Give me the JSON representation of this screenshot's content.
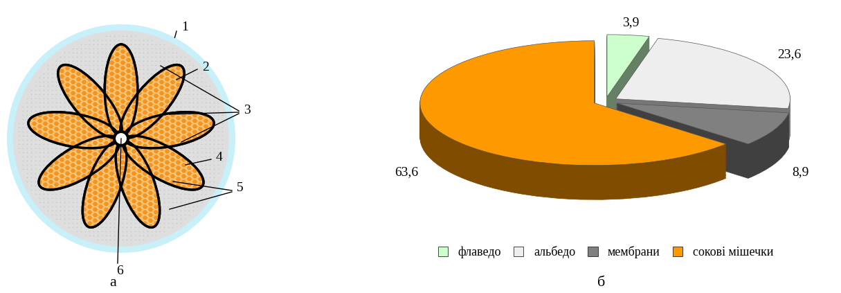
{
  "diagram": {
    "labels": [
      "1",
      "2",
      "3",
      "4",
      "5",
      "6"
    ],
    "caption": "а"
  },
  "chart_data": {
    "type": "pie",
    "categories": [
      "флаведо",
      "альбедо",
      "мембрани",
      "сокові мішечки"
    ],
    "values": [
      3.9,
      23.6,
      8.9,
      63.6
    ],
    "value_labels": [
      "3,9",
      "23,6",
      "8,9",
      "63,6"
    ],
    "colors": [
      "#ccffcc",
      "#eeeeee",
      "#808080",
      "#ff9900"
    ],
    "data_labels": true,
    "legend": "lower center",
    "annotations": [
      "б"
    ]
  }
}
